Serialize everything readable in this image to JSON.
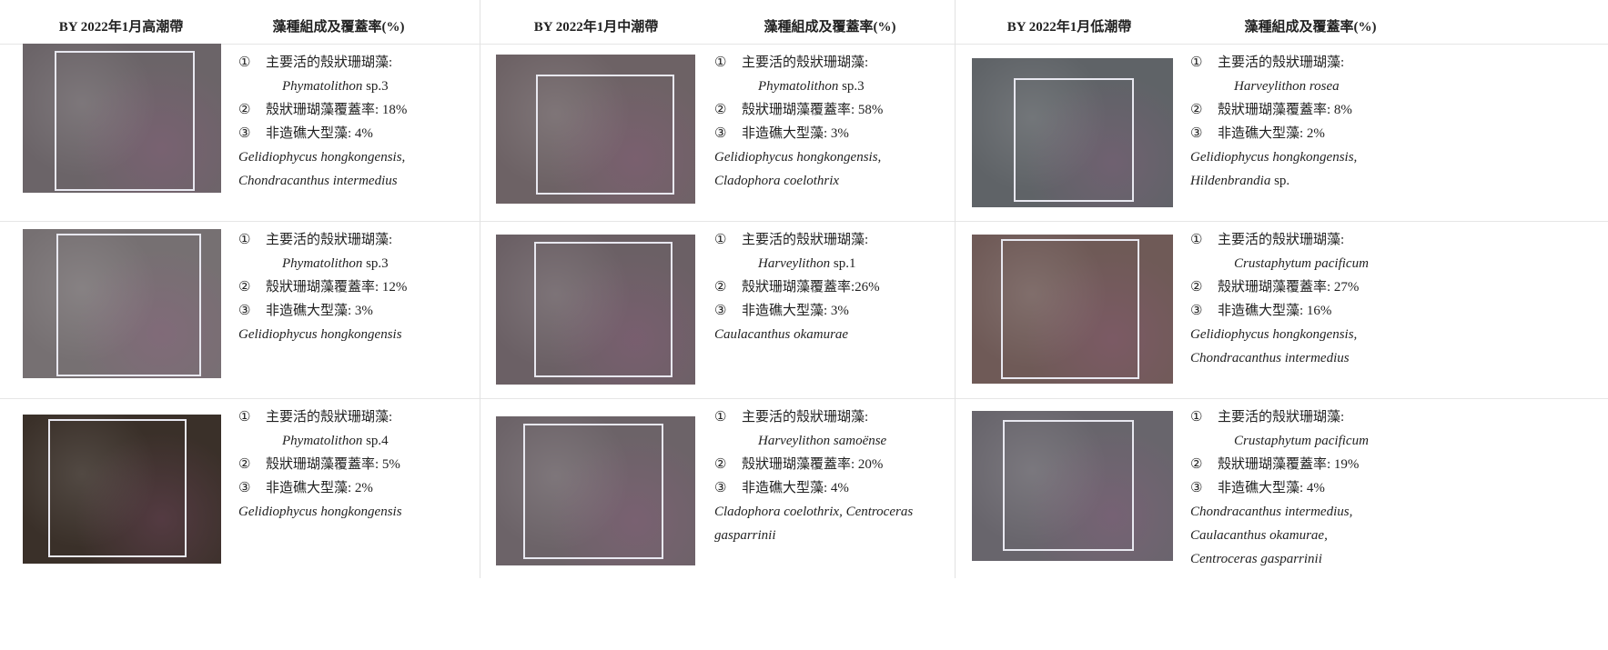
{
  "markers": [
    "①",
    "②",
    "③"
  ],
  "columns": [
    {
      "header": {
        "site": "BY 2022年1月高潮帶",
        "composition": "藻種組成及覆蓋率(%)"
      },
      "rows": [
        {
          "dominant_label": "主要活的殼狀珊瑚藻:",
          "dominant_species": [
            {
              "text": "Phymatolithon",
              "italic": true
            },
            {
              "text": "sp.3",
              "italic": false
            }
          ],
          "coverage": "殼狀珊瑚藻覆蓋率: 18%",
          "macroalgae": "非造礁大型藻: 4%",
          "other_species": [
            {
              "text": "Gelidiophycus hongkongensis,",
              "italic": true
            },
            {
              "text": "Chondracanthus intermedius",
              "italic": true
            }
          ]
        },
        {
          "dominant_label": "主要活的殼狀珊瑚藻:",
          "dominant_species": [
            {
              "text": "Phymatolithon",
              "italic": true
            },
            {
              "text": "sp.3",
              "italic": false
            }
          ],
          "coverage": "殼狀珊瑚藻覆蓋率: 12%",
          "macroalgae": "非造礁大型藻: 3%",
          "other_species": [
            {
              "text": "Gelidiophycus hongkongensis",
              "italic": true
            }
          ]
        },
        {
          "dominant_label": "主要活的殼狀珊瑚藻:",
          "dominant_species": [
            {
              "text": "Phymatolithon",
              "italic": true
            },
            {
              "text": "sp.4",
              "italic": false
            }
          ],
          "coverage": "殼狀珊瑚藻覆蓋率: 5%",
          "macroalgae": "非造礁大型藻: 2%",
          "other_species": [
            {
              "text": "Gelidiophycus hongkongensis",
              "italic": true
            }
          ]
        }
      ]
    },
    {
      "header": {
        "site": "BY 2022年1月中潮帶",
        "composition": "藻種組成及覆蓋率(%)"
      },
      "rows": [
        {
          "dominant_label": "主要活的殼狀珊瑚藻:",
          "dominant_species": [
            {
              "text": "Phymatolithon",
              "italic": true
            },
            {
              "text": "sp.3",
              "italic": false
            }
          ],
          "coverage": "殼狀珊瑚藻覆蓋率: 58%",
          "macroalgae": "非造礁大型藻: 3%",
          "other_species": [
            {
              "text": "Gelidiophycus hongkongensis,",
              "italic": true
            },
            {
              "text": "Cladophora coelothrix",
              "italic": true
            }
          ]
        },
        {
          "dominant_label": "主要活的殼狀珊瑚藻:",
          "dominant_species": [
            {
              "text": "Harveylithon",
              "italic": true
            },
            {
              "text": "sp.1",
              "italic": false
            }
          ],
          "coverage": "殼狀珊瑚藻覆蓋率:26%",
          "macroalgae": "非造礁大型藻: 3%",
          "other_species": [
            {
              "text": "Caulacanthus okamurae",
              "italic": true
            }
          ]
        },
        {
          "dominant_label": "主要活的殼狀珊瑚藻:",
          "dominant_species": [
            {
              "text": "Harveylithon samoënse",
              "italic": true
            }
          ],
          "coverage": "殼狀珊瑚藻覆蓋率: 20%",
          "macroalgae": "非造礁大型藻: 4%",
          "other_species": [
            {
              "text": "Cladophora coelothrix, Centroceras gasparrinii",
              "italic": true
            }
          ]
        }
      ]
    },
    {
      "header": {
        "site": "BY 2022年1月低潮帶",
        "composition": "藻種組成及覆蓋率(%)"
      },
      "rows": [
        {
          "dominant_label": "主要活的殼狀珊瑚藻:",
          "dominant_species": [
            {
              "text": "Harveylithon rosea",
              "italic": true
            }
          ],
          "coverage": "殼狀珊瑚藻覆蓋率: 8%",
          "macroalgae": "非造礁大型藻: 2%",
          "other_species": [
            {
              "text": "Gelidiophycus hongkongensis,",
              "italic": true
            },
            {
              "text": "Hildenbrandia",
              "italic": true
            },
            {
              "text": "sp.",
              "italic": false
            }
          ]
        },
        {
          "dominant_label": "主要活的殼狀珊瑚藻:",
          "dominant_species": [
            {
              "text": "Crustaphytum pacificum",
              "italic": true
            }
          ],
          "coverage": "殼狀珊瑚藻覆蓋率: 27%",
          "macroalgae": "非造礁大型藻: 16%",
          "other_species": [
            {
              "text": "Gelidiophycus hongkongensis,",
              "italic": true
            },
            {
              "text": "Chondracanthus intermedius",
              "italic": true
            }
          ]
        },
        {
          "dominant_label": "主要活的殼狀珊瑚藻:",
          "dominant_species": [
            {
              "text": "Crustaphytum pacificum",
              "italic": true
            }
          ],
          "coverage": "殼狀珊瑚藻覆蓋率: 19%",
          "macroalgae": "非造礁大型藻: 4%",
          "other_species": [
            {
              "text": "Chondracanthus intermedius,",
              "italic": true
            },
            {
              "text": "Caulacanthus okamurae,",
              "italic": true
            },
            {
              "text": "Centroceras gasparrinii",
              "italic": true
            }
          ]
        }
      ]
    }
  ]
}
